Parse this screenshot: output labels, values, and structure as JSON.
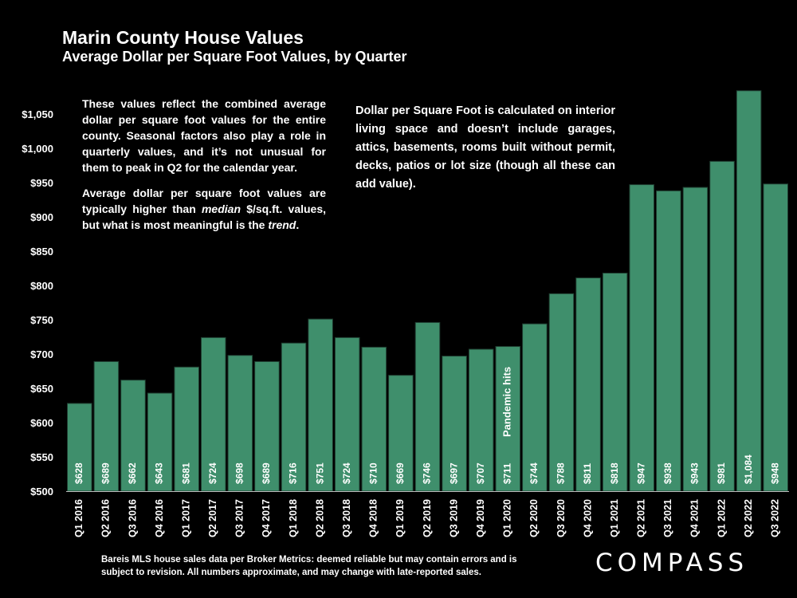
{
  "title": "Marin County House Values",
  "subtitle": "Average Dollar per Square Foot Values, by Quarter",
  "note_left": {
    "p1": "These values reflect the combined average dollar per square foot values for the entire county. Seasonal factors also play a role in quarterly values, and it’s not unusual for them to peak in Q2 for the calendar year.",
    "p2_prefix": "Average dollar per square foot values are typically higher than ",
    "p2_em1": "median",
    "p2_mid": " $/sq.ft. values, but what is most meaningful is the ",
    "p2_em2": "trend",
    "p2_suffix": "."
  },
  "note_right": "Dollar per Square Foot is calculated on interior living space and doesn’t include garages, attics, basements, rooms built without permit, decks, patios or lot size (though all these can add value).",
  "source": "Bareis MLS house sales data per Broker Metrics:  deemed reliable but may contain errors and is subject to revision. All numbers approximate, and may change with late-reported sales.",
  "logo": "COMPASS",
  "colors": {
    "bar": "#3f8f6c",
    "background": "#000000",
    "text": "#ffffff"
  },
  "chart_data": {
    "type": "bar",
    "title": "Marin County House Values",
    "subtitle": "Average Dollar per Square Foot Values, by Quarter",
    "xlabel": "",
    "ylabel": "",
    "ylim": [
      500,
      1100
    ],
    "yticks": [
      500,
      550,
      600,
      650,
      700,
      750,
      800,
      850,
      900,
      950,
      1000,
      1050
    ],
    "ytick_labels": [
      "$500",
      "$550",
      "$600",
      "$650",
      "$700",
      "$750",
      "$800",
      "$850",
      "$900",
      "$950",
      "$1,000",
      "$1,050"
    ],
    "categories": [
      "Q1 2016",
      "Q2 2016",
      "Q3 2016",
      "Q4 2016",
      "Q1 2017",
      "Q2 2017",
      "Q3 2017",
      "Q4 2017",
      "Q1 2018",
      "Q2 2018",
      "Q3 2018",
      "Q4 2018",
      "Q1 2019",
      "Q2 2019",
      "Q3 2019",
      "Q4 2019",
      "Q1 2020",
      "Q2 2020",
      "Q3 2020",
      "Q4 2020",
      "Q1 2021",
      "Q2 2021",
      "Q3 2021",
      "Q4 2021",
      "Q1 2022",
      "Q2 2022",
      "Q3 2022"
    ],
    "values": [
      628,
      689,
      662,
      643,
      681,
      724,
      698,
      689,
      716,
      751,
      724,
      710,
      669,
      746,
      697,
      707,
      711,
      744,
      788,
      811,
      818,
      947,
      938,
      943,
      981,
      1084,
      948
    ],
    "value_labels": [
      "$628",
      "$689",
      "$662",
      "$643",
      "$681",
      "$724",
      "$698",
      "$689",
      "$716",
      "$751",
      "$724",
      "$710",
      "$669",
      "$746",
      "$697",
      "$707",
      "$711",
      "$744",
      "$788",
      "$811",
      "$818",
      "$947",
      "$938",
      "$943",
      "$981",
      "$1,084",
      "$948"
    ],
    "annotation": {
      "text": "Pandemic hits",
      "category": "Q1 2020"
    },
    "grid": false,
    "legend": "none"
  }
}
